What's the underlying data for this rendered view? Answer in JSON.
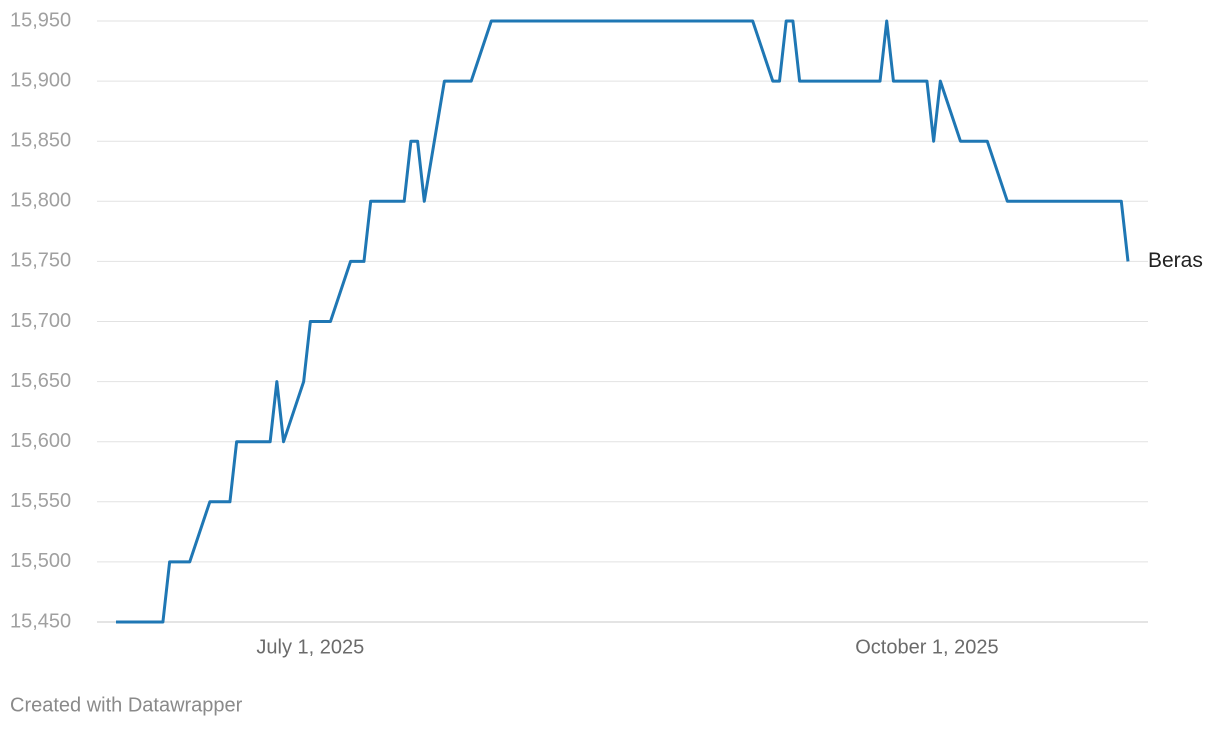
{
  "chart_data": {
    "type": "line",
    "x": [
      "2025-06-02",
      "2025-06-09",
      "2025-06-10",
      "2025-06-13",
      "2025-06-16",
      "2025-06-19",
      "2025-06-20",
      "2025-06-25",
      "2025-06-26",
      "2025-06-27",
      "2025-06-30",
      "2025-07-01",
      "2025-07-04",
      "2025-07-07",
      "2025-07-09",
      "2025-07-10",
      "2025-07-15",
      "2025-07-16",
      "2025-07-17",
      "2025-07-18",
      "2025-07-21",
      "2025-07-25",
      "2025-07-28",
      "2025-09-05",
      "2025-09-08",
      "2025-09-09",
      "2025-09-10",
      "2025-09-11",
      "2025-09-12",
      "2025-09-24",
      "2025-09-25",
      "2025-09-26",
      "2025-10-01",
      "2025-10-02",
      "2025-10-03",
      "2025-10-06",
      "2025-10-10",
      "2025-10-13",
      "2025-10-30",
      "2025-10-31"
    ],
    "series": [
      {
        "name": "Beras",
        "color": "#1f77b4",
        "values": [
          15450,
          15450,
          15500,
          15500,
          15550,
          15550,
          15600,
          15600,
          15650,
          15600,
          15650,
          15700,
          15700,
          15750,
          15750,
          15800,
          15800,
          15850,
          15850,
          15800,
          15900,
          15900,
          15950,
          15950,
          15900,
          15900,
          15950,
          15950,
          15900,
          15900,
          15950,
          15900,
          15900,
          15850,
          15900,
          15850,
          15850,
          15800,
          15800,
          15750
        ]
      }
    ],
    "xlim": [
      "2025-06-02",
      "2025-10-31"
    ],
    "xticks": [
      {
        "value": "2025-07-01",
        "label": "July 1, 2025"
      },
      {
        "value": "2025-10-01",
        "label": "October 1, 2025"
      }
    ],
    "ylim": [
      15450,
      15950
    ],
    "yticks": [
      {
        "value": 15450,
        "label": "15,450"
      },
      {
        "value": 15500,
        "label": "15,500"
      },
      {
        "value": 15550,
        "label": "15,550"
      },
      {
        "value": 15600,
        "label": "15,600"
      },
      {
        "value": 15650,
        "label": "15,650"
      },
      {
        "value": 15700,
        "label": "15,700"
      },
      {
        "value": 15750,
        "label": "15,750"
      },
      {
        "value": 15800,
        "label": "15,800"
      },
      {
        "value": 15850,
        "label": "15,850"
      },
      {
        "value": 15900,
        "label": "15,900"
      },
      {
        "value": 15950,
        "label": "15,950"
      }
    ],
    "grid": true,
    "footer": "Created with Datawrapper"
  }
}
